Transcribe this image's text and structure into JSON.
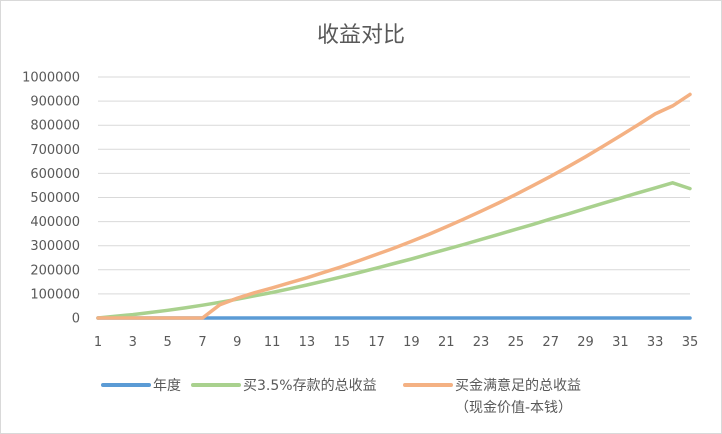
{
  "chart_data": {
    "type": "line",
    "title": "收益对比",
    "xlabel": "",
    "ylabel": "",
    "x": [
      1,
      2,
      3,
      4,
      5,
      6,
      7,
      8,
      9,
      10,
      11,
      12,
      13,
      14,
      15,
      16,
      17,
      18,
      19,
      20,
      21,
      22,
      23,
      24,
      25,
      26,
      27,
      28,
      29,
      30,
      31,
      32,
      33,
      34,
      35
    ],
    "x_ticks": [
      1,
      3,
      5,
      7,
      9,
      11,
      13,
      15,
      17,
      19,
      21,
      23,
      25,
      27,
      29,
      31,
      33,
      35
    ],
    "y_ticks": [
      0,
      100000,
      200000,
      300000,
      400000,
      500000,
      600000,
      700000,
      800000,
      900000,
      1000000
    ],
    "ylim": [
      0,
      1000000
    ],
    "grid": "horizontal",
    "legend_position": "bottom",
    "series": [
      {
        "name": "年度",
        "color": "#5b9bd5",
        "values": [
          1,
          2,
          3,
          4,
          5,
          6,
          7,
          8,
          9,
          10,
          11,
          12,
          13,
          14,
          15,
          16,
          17,
          18,
          19,
          20,
          21,
          22,
          23,
          24,
          25,
          26,
          27,
          28,
          29,
          30,
          31,
          32,
          33,
          34,
          35
        ]
      },
      {
        "name": "买3.5%存款的总收益",
        "color": "#a9d18e",
        "values": [
          0,
          7000,
          14000,
          23000,
          32000,
          42000,
          53000,
          65000,
          78000,
          92000,
          106000,
          121000,
          137000,
          154000,
          171000,
          189000,
          207000,
          226000,
          245000,
          265000,
          285000,
          305000,
          326000,
          347000,
          368000,
          389000,
          411000,
          432000,
          454000,
          476000,
          497000,
          519000,
          540000,
          561000,
          537000
        ]
      },
      {
        "name": "买金满意足的总收益",
        "name_line2": "（现金价值-本钱）",
        "color": "#f4b183",
        "values": [
          0,
          0,
          0,
          0,
          0,
          0,
          0,
          55000,
          82000,
          105000,
          125000,
          146000,
          167000,
          190000,
          213000,
          238000,
          264000,
          290000,
          318000,
          347000,
          378000,
          410000,
          443000,
          477000,
          513000,
          550000,
          588000,
          628000,
          669000,
          712000,
          756000,
          801000,
          847000,
          880000,
          928000
        ]
      }
    ]
  }
}
